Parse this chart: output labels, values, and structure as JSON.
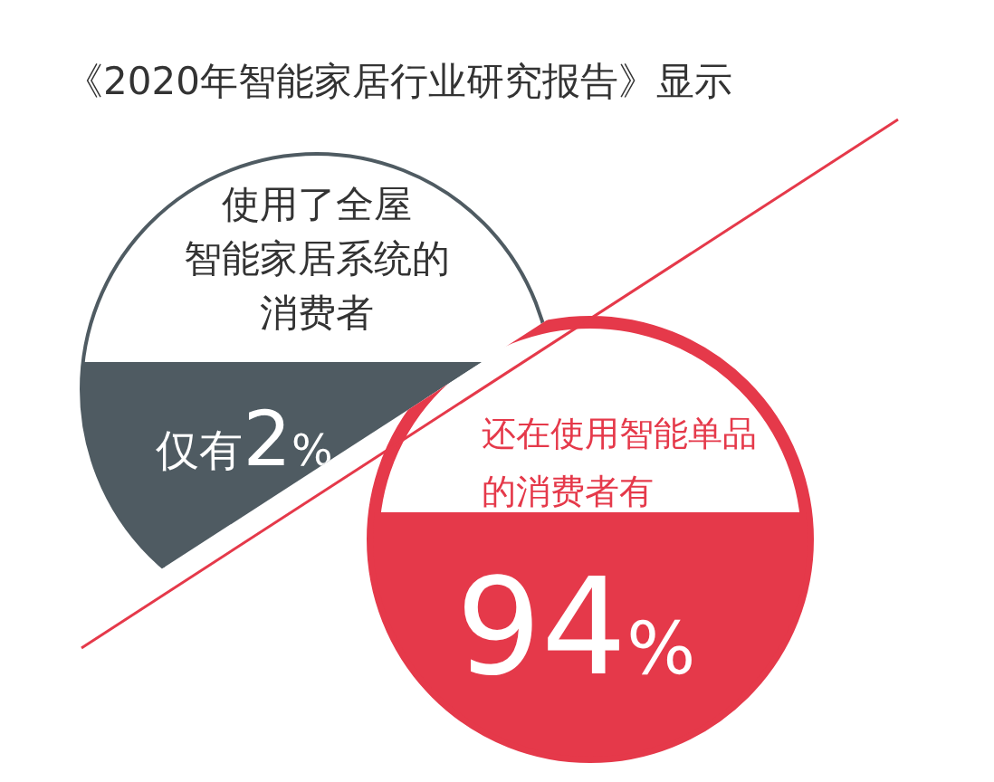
{
  "chart_data": {
    "type": "other",
    "title": "《2020年智能家居行业研究报告》显示",
    "categories": [
      "使用了全屋智能家居系统的消费者",
      "还在使用智能单品的消费者有"
    ],
    "values": [
      2,
      94
    ],
    "value_labels": [
      "仅有2%",
      "94%"
    ],
    "colors": [
      "#4f5b62",
      "#e5394a"
    ]
  }
}
